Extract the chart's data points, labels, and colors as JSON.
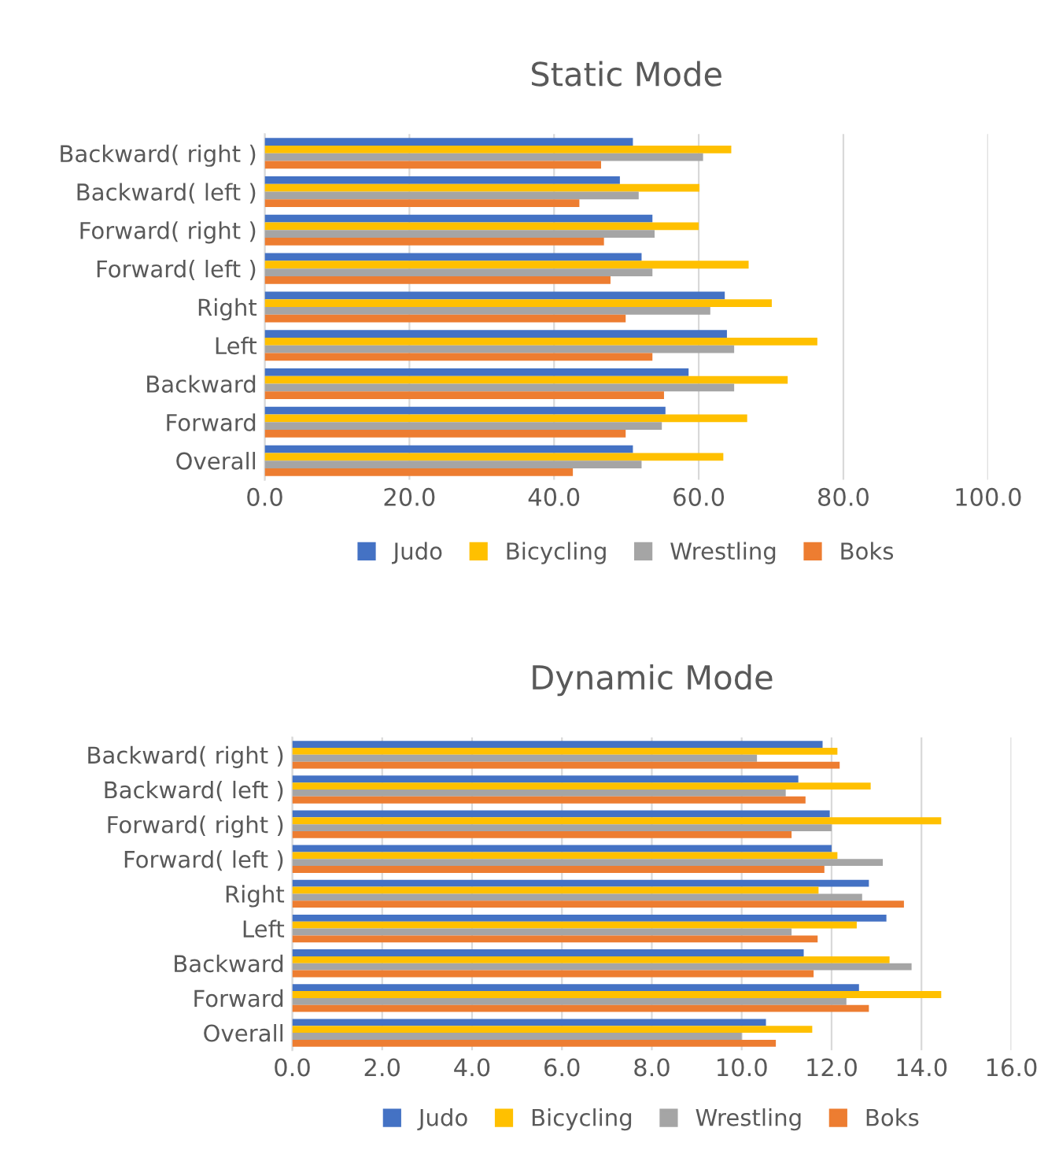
{
  "chart_data": [
    {
      "type": "bar",
      "orientation": "horizontal",
      "title": "Static Mode",
      "categories": [
        "Backward( right )",
        "Backward( left )",
        "Forward( right )",
        "Forward( left )",
        "Right",
        "Left",
        "Backward",
        "Forward",
        "Overall"
      ],
      "series": [
        {
          "name": "Judo",
          "color": "#4472c4",
          "values": [
            50.9,
            49.1,
            53.6,
            52.1,
            63.6,
            63.9,
            58.6,
            55.4,
            50.9
          ]
        },
        {
          "name": "Bicycling",
          "color": "#ffc000",
          "values": [
            64.5,
            60.1,
            60.0,
            66.9,
            70.1,
            76.4,
            72.3,
            66.7,
            63.4
          ]
        },
        {
          "name": "Wrestling",
          "color": "#a5a5a5",
          "values": [
            60.6,
            51.7,
            53.9,
            53.6,
            61.6,
            64.9,
            64.9,
            54.9,
            52.1
          ]
        },
        {
          "name": "Boks",
          "color": "#ed7d31",
          "values": [
            46.5,
            43.5,
            46.9,
            47.8,
            49.9,
            53.6,
            55.2,
            49.9,
            42.6
          ]
        }
      ],
      "xlim": [
        0,
        100
      ],
      "xticks": [
        {
          "value": 0,
          "label": "0.0"
        },
        {
          "value": 20,
          "label": "20.0"
        },
        {
          "value": 40,
          "label": "40.0"
        },
        {
          "value": 60,
          "label": "60.0"
        },
        {
          "value": 80,
          "label": "80.0"
        },
        {
          "value": 100,
          "label": "100.0"
        }
      ],
      "grid": "x",
      "legend": "bottom"
    },
    {
      "type": "bar",
      "orientation": "horizontal",
      "title": "Dynamic Mode",
      "categories": [
        "Backward( right )",
        "Backward( left )",
        "Forward( right )",
        "Forward( left )",
        "Right",
        "Left",
        "Backward",
        "Forward",
        "Overall"
      ],
      "series": [
        {
          "name": "Judo",
          "color": "#4472c4",
          "values": [
            11.8,
            11.26,
            11.96,
            12.0,
            12.83,
            13.22,
            11.38,
            12.61,
            10.54
          ]
        },
        {
          "name": "Bicycling",
          "color": "#ffc000",
          "values": [
            12.13,
            12.87,
            14.44,
            12.13,
            11.71,
            12.56,
            13.29,
            14.44,
            11.57
          ]
        },
        {
          "name": "Wrestling",
          "color": "#a5a5a5",
          "values": [
            10.34,
            10.98,
            12.0,
            13.14,
            12.68,
            11.11,
            13.78,
            12.33,
            10.0
          ]
        },
        {
          "name": "Boks",
          "color": "#ed7d31",
          "values": [
            12.18,
            11.42,
            11.11,
            11.84,
            13.61,
            11.69,
            11.6,
            12.83,
            10.76
          ]
        }
      ],
      "xlim": [
        0,
        16
      ],
      "xticks": [
        {
          "value": 0,
          "label": "0.0"
        },
        {
          "value": 2,
          "label": "2.0"
        },
        {
          "value": 4,
          "label": "4.0"
        },
        {
          "value": 6,
          "label": "6.0"
        },
        {
          "value": 8,
          "label": "8.0"
        },
        {
          "value": 10,
          "label": "10.0"
        },
        {
          "value": 12,
          "label": "12.0"
        },
        {
          "value": 14,
          "label": "14.0"
        },
        {
          "value": 16,
          "label": "16.0"
        }
      ],
      "grid": "x",
      "legend": "bottom"
    }
  ]
}
